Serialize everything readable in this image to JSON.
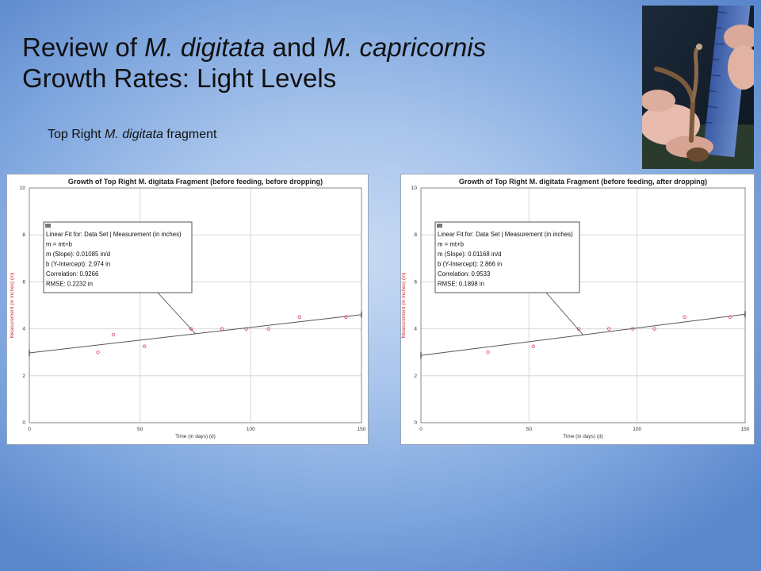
{
  "slide": {
    "title_line1_parts": [
      "Review of ",
      "M. digitata",
      " and ",
      "M. capricornis"
    ],
    "title_line2": "Growth Rates: Light Levels",
    "subtitle_parts": [
      "Top Right ",
      "M. digitata",
      " fragment"
    ]
  },
  "photo": {
    "description_icon": "coral-measurement-photo-icon"
  },
  "colors": {
    "point": "#e0587a",
    "axis_label": "#d03040",
    "fit_line": "#555555",
    "grid": "#d8d8d8"
  },
  "chart_data": [
    {
      "type": "scatter",
      "title": "Growth of Top Right M. digitata Fragment (before feeding, before dropping)",
      "xlabel": "Time (in days) (d)",
      "ylabel": "Measurement (in inches) (in)",
      "xlim": [
        0,
        150
      ],
      "ylim": [
        0,
        10
      ],
      "xticks": [
        0,
        50,
        100,
        150
      ],
      "yticks": [
        0,
        2,
        4,
        6,
        8,
        10
      ],
      "grid": true,
      "x": [
        31,
        38,
        52,
        73,
        87,
        98,
        108,
        122,
        143
      ],
      "y": [
        3.0,
        3.75,
        3.25,
        4.0,
        4.0,
        4.0,
        4.0,
        4.5,
        4.5
      ],
      "fit": {
        "slope": 0.01085,
        "intercept": 2.974
      },
      "annotation": {
        "lines": [
          "Linear Fit for: Data Set | Measurement (in inches)",
          "m = mt+b",
          "m (Slope): 0.01085 in/d",
          "b (Y-Intercept): 2.974 in",
          "Correlation: 0.9266",
          "RMSE: 0.2232 in"
        ],
        "pointer_x": 75
      }
    },
    {
      "type": "scatter",
      "title": "Growth of Top Right M. digitata Fragment (before feeding, after dropping)",
      "xlabel": "Time (in days) (d)",
      "ylabel": "Measurement (in inches) (in)",
      "xlim": [
        0,
        150
      ],
      "ylim": [
        0,
        10
      ],
      "xticks": [
        0,
        50,
        100,
        150
      ],
      "yticks": [
        0,
        2,
        4,
        6,
        8,
        10
      ],
      "grid": true,
      "x": [
        31,
        52,
        73,
        87,
        98,
        108,
        122,
        143
      ],
      "y": [
        3.0,
        3.25,
        4.0,
        4.0,
        4.0,
        4.0,
        4.5,
        4.5
      ],
      "fit": {
        "slope": 0.01168,
        "intercept": 2.866
      },
      "annotation": {
        "lines": [
          "Linear Fit for: Data Set | Measurement (in inches)",
          "m = mt+b",
          "m (Slope): 0.01168 in/d",
          "b (Y-Intercept): 2.866 in",
          "Correlation: 0.9533",
          "RMSE: 0.1898 in"
        ],
        "pointer_x": 75
      }
    }
  ]
}
